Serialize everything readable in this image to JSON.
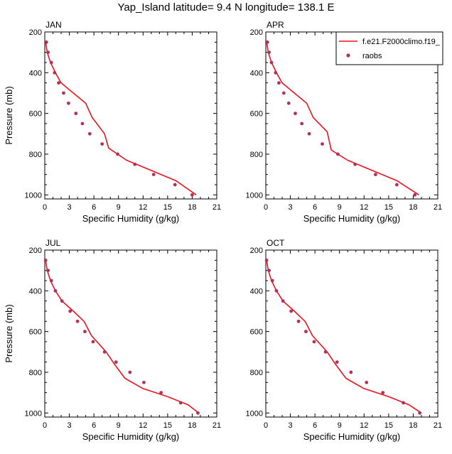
{
  "title": "Yap_Island  latitude= 9.4 N longitude= 138.1 E",
  "colors": {
    "model": "#e8141a",
    "obs": "#b03060"
  },
  "legend": {
    "placement": "top-right",
    "entries": [
      {
        "label": "f.e21.F2000climo.f19_",
        "style": "line",
        "color": "#e8141a"
      },
      {
        "label": "raobs",
        "style": "marker",
        "color": "#b03060"
      }
    ]
  },
  "chart_data": [
    {
      "type": "line",
      "panel": "JAN",
      "xlabel": "Specific Humidity (g/kg)",
      "ylabel": "Pressure (mb)",
      "xlim": [
        0,
        21
      ],
      "ylim": [
        200,
        1020
      ],
      "y_inverted": true,
      "xticks": [
        0,
        3,
        6,
        9,
        12,
        15,
        18,
        21
      ],
      "yticks": [
        200,
        400,
        600,
        800,
        1000
      ],
      "series": [
        {
          "name": "f.e21.F2000climo.f19_",
          "kind": "line",
          "x": [
            0.1,
            0.3,
            0.7,
            1.3,
            2.0,
            3.5,
            5.0,
            5.8,
            7.3,
            7.8,
            10.0,
            13.0,
            16.0,
            18.5
          ],
          "y": [
            250,
            300,
            350,
            400,
            450,
            500,
            550,
            620,
            700,
            770,
            830,
            880,
            930,
            1000
          ]
        },
        {
          "name": "raobs",
          "kind": "scatter",
          "x": [
            0.2,
            0.4,
            0.8,
            1.2,
            1.7,
            2.3,
            2.9,
            3.8,
            4.6,
            5.5,
            7.0,
            8.9,
            11.0,
            13.3,
            15.9,
            18.0
          ],
          "y": [
            250,
            300,
            350,
            400,
            450,
            500,
            550,
            600,
            650,
            700,
            750,
            800,
            850,
            900,
            950,
            1000
          ]
        }
      ]
    },
    {
      "type": "line",
      "panel": "APR",
      "xlabel": "Specific Humidity (g/kg)",
      "ylabel": "",
      "xlim": [
        0,
        21
      ],
      "ylim": [
        200,
        1020
      ],
      "y_inverted": true,
      "xticks": [
        0,
        3,
        6,
        9,
        12,
        15,
        18,
        21
      ],
      "yticks": [
        200,
        400,
        600,
        800,
        1000
      ],
      "series": [
        {
          "name": "f.e21.F2000climo.f19_",
          "kind": "line",
          "x": [
            0.1,
            0.3,
            0.7,
            1.3,
            2.0,
            3.5,
            5.0,
            5.8,
            7.5,
            8.0,
            10.0,
            13.0,
            16.0,
            18.7
          ],
          "y": [
            250,
            300,
            350,
            400,
            450,
            500,
            550,
            620,
            690,
            780,
            830,
            880,
            930,
            1000
          ]
        },
        {
          "name": "raobs",
          "kind": "scatter",
          "x": [
            0.2,
            0.4,
            0.7,
            1.2,
            1.6,
            2.2,
            2.8,
            3.6,
            4.4,
            5.3,
            6.9,
            8.8,
            10.9,
            13.4,
            16.0,
            18.2
          ],
          "y": [
            250,
            300,
            350,
            400,
            450,
            500,
            550,
            600,
            650,
            700,
            750,
            800,
            850,
            900,
            950,
            1000
          ]
        }
      ]
    },
    {
      "type": "line",
      "panel": "JUL",
      "xlabel": "Specific Humidity (g/kg)",
      "ylabel": "Pressure (mb)",
      "xlim": [
        0,
        21
      ],
      "ylim": [
        200,
        1020
      ],
      "y_inverted": true,
      "xticks": [
        0,
        3,
        6,
        9,
        12,
        15,
        18,
        21
      ],
      "yticks": [
        200,
        400,
        600,
        800,
        1000
      ],
      "series": [
        {
          "name": "f.e21.F2000climo.f19_",
          "kind": "line",
          "x": [
            0.1,
            0.3,
            0.7,
            1.3,
            2.1,
            3.5,
            4.8,
            5.7,
            7.5,
            8.5,
            9.8,
            12.0,
            15.0,
            17.5,
            18.8
          ],
          "y": [
            250,
            300,
            350,
            400,
            450,
            500,
            550,
            620,
            700,
            760,
            830,
            880,
            920,
            960,
            1000
          ]
        },
        {
          "name": "raobs",
          "kind": "scatter",
          "x": [
            0.1,
            0.4,
            0.8,
            1.3,
            2.1,
            3.1,
            4.0,
            4.9,
            5.9,
            7.3,
            8.7,
            10.4,
            12.1,
            14.2,
            16.6,
            18.7
          ],
          "y": [
            250,
            300,
            350,
            400,
            450,
            500,
            550,
            600,
            650,
            700,
            750,
            800,
            850,
            900,
            950,
            1000
          ]
        }
      ]
    },
    {
      "type": "line",
      "panel": "OCT",
      "xlabel": "Specific Humidity (g/kg)",
      "ylabel": "",
      "xlim": [
        0,
        21
      ],
      "ylim": [
        200,
        1020
      ],
      "y_inverted": true,
      "xticks": [
        0,
        3,
        6,
        9,
        12,
        15,
        18,
        21
      ],
      "yticks": [
        200,
        400,
        600,
        800,
        1000
      ],
      "series": [
        {
          "name": "f.e21.F2000climo.f19_",
          "kind": "line",
          "x": [
            0.1,
            0.3,
            0.7,
            1.3,
            2.1,
            3.5,
            4.8,
            5.7,
            7.5,
            8.5,
            9.8,
            12.0,
            15.0,
            17.5,
            19.0
          ],
          "y": [
            250,
            300,
            350,
            400,
            450,
            500,
            550,
            620,
            700,
            760,
            830,
            880,
            920,
            960,
            1000
          ]
        },
        {
          "name": "raobs",
          "kind": "scatter",
          "x": [
            0.1,
            0.4,
            0.8,
            1.3,
            2.1,
            3.1,
            4.0,
            4.9,
            5.9,
            7.3,
            8.7,
            10.4,
            12.3,
            14.3,
            16.8,
            18.8
          ],
          "y": [
            250,
            300,
            350,
            400,
            450,
            500,
            550,
            600,
            650,
            700,
            750,
            800,
            850,
            900,
            950,
            1000
          ]
        }
      ]
    }
  ]
}
